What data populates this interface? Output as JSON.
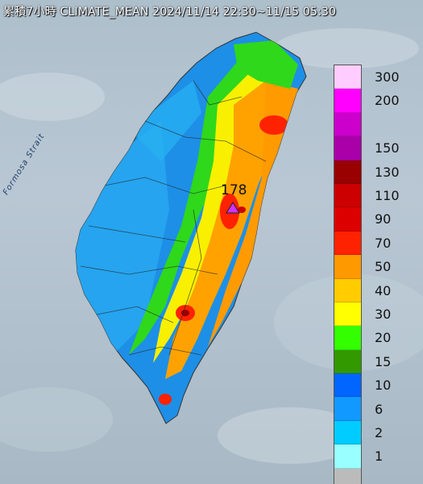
{
  "title": "累積7小時 CLIMATE_MEAN 2024/11/14 22:30~11/15 05:30",
  "strait_label": "Formosa Strait",
  "max_station_value": "178",
  "legend": {
    "items": [
      {
        "label": "300",
        "color": "#ffccff"
      },
      {
        "label": "200",
        "color": "#ff00ff"
      },
      {
        "label": "",
        "color": "#cc00cc"
      },
      {
        "label": "150",
        "color": "#aa00aa"
      },
      {
        "label": "130",
        "color": "#990000"
      },
      {
        "label": "110",
        "color": "#cc0000"
      },
      {
        "label": "90",
        "color": "#dd0000"
      },
      {
        "label": "70",
        "color": "#ff2200"
      },
      {
        "label": "50",
        "color": "#ff9900"
      },
      {
        "label": "40",
        "color": "#ffcc00"
      },
      {
        "label": "30",
        "color": "#ffff00"
      },
      {
        "label": "20",
        "color": "#33ff00"
      },
      {
        "label": "15",
        "color": "#339900"
      },
      {
        "label": "10",
        "color": "#0066ff"
      },
      {
        "label": "6",
        "color": "#1199ff"
      },
      {
        "label": "2",
        "color": "#00ccff"
      },
      {
        "label": "1",
        "color": "#99ffff"
      },
      {
        "label": "",
        "color": "#bbbbbb"
      }
    ]
  }
}
